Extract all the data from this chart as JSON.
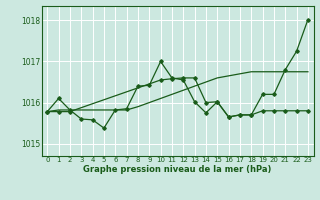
{
  "title": "Graphe pression niveau de la mer (hPa)",
  "background_color": "#cce8e0",
  "grid_color": "#ffffff",
  "line_color": "#1a5c1a",
  "xlim": [
    -0.5,
    23.5
  ],
  "ylim": [
    1014.7,
    1018.35
  ],
  "yticks": [
    1015,
    1016,
    1017,
    1018
  ],
  "xticks": [
    0,
    1,
    2,
    3,
    4,
    5,
    6,
    7,
    8,
    9,
    10,
    11,
    12,
    13,
    14,
    15,
    16,
    17,
    18,
    19,
    20,
    21,
    22,
    23
  ],
  "series": [
    {
      "x": [
        0,
        1,
        2,
        3,
        4,
        5,
        6,
        7,
        8,
        9,
        10,
        11,
        12,
        13,
        14,
        15,
        16,
        17,
        18,
        19,
        20,
        21,
        22,
        23
      ],
      "y": [
        1015.78,
        1015.82,
        1015.82,
        1015.82,
        1015.82,
        1015.82,
        1015.82,
        1015.82,
        1015.9,
        1016.0,
        1016.1,
        1016.2,
        1016.3,
        1016.4,
        1016.5,
        1016.6,
        1016.65,
        1016.7,
        1016.75,
        1016.75,
        1016.75,
        1016.75,
        1016.75,
        1016.75
      ],
      "marker": null,
      "linewidth": 0.9
    },
    {
      "x": [
        0,
        1,
        2,
        3,
        4,
        5,
        6,
        7,
        8,
        9,
        10,
        11,
        12,
        13,
        14,
        15,
        16,
        17,
        18,
        19,
        20,
        21,
        22,
        23
      ],
      "y": [
        1015.78,
        1016.1,
        1015.82,
        1015.6,
        1015.58,
        1015.38,
        1015.82,
        1015.85,
        1016.4,
        1016.42,
        1017.0,
        1016.6,
        1016.55,
        1016.02,
        1015.75,
        1016.02,
        1015.65,
        1015.7,
        1015.7,
        1015.8,
        1015.8,
        1015.8,
        1015.8,
        1015.8
      ],
      "marker": "D",
      "linewidth": 0.9
    },
    {
      "x": [
        0,
        1,
        2,
        10,
        11,
        12,
        13,
        14,
        15,
        16,
        17,
        18,
        19,
        20,
        21,
        22,
        23
      ],
      "y": [
        1015.78,
        1015.78,
        1015.78,
        1016.55,
        1016.58,
        1016.6,
        1016.6,
        1016.0,
        1016.02,
        1015.65,
        1015.7,
        1015.7,
        1016.2,
        1016.2,
        1016.8,
        1017.25,
        1018.02
      ],
      "marker": "D",
      "linewidth": 0.9
    }
  ]
}
